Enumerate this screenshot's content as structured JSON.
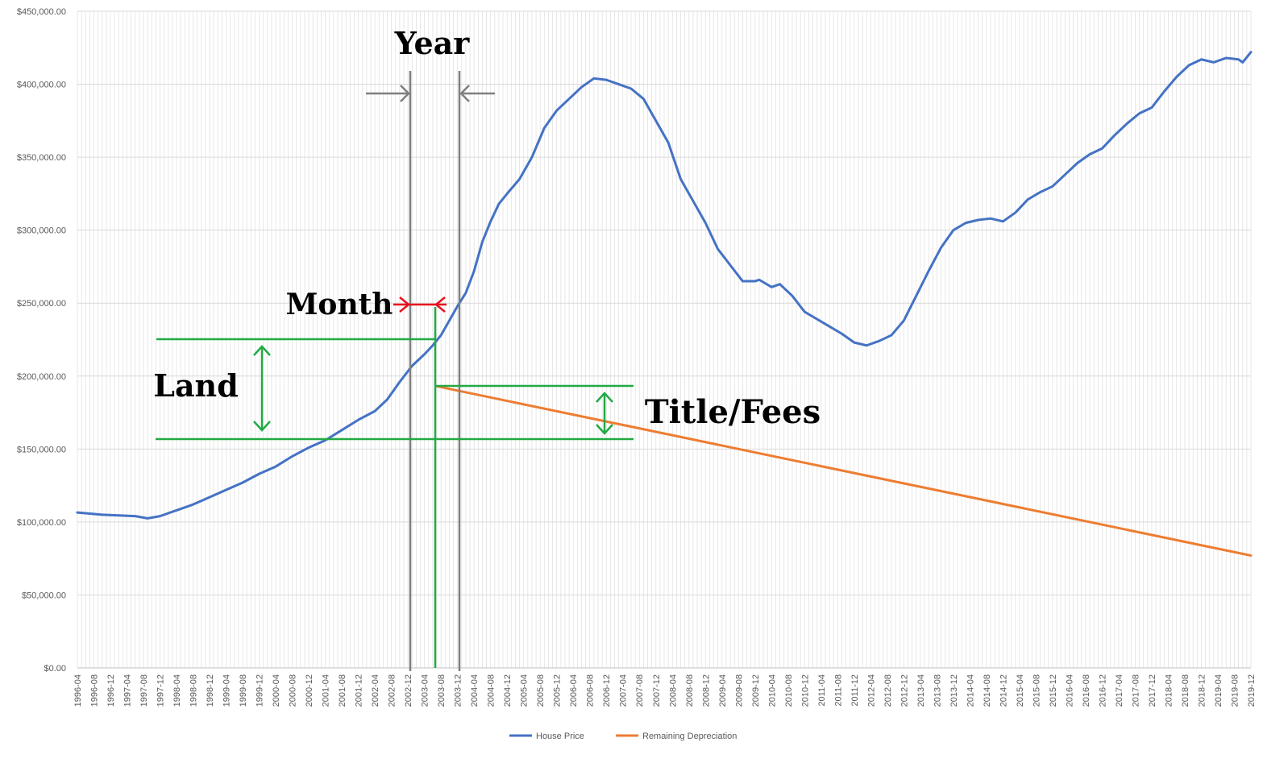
{
  "chart_data": {
    "type": "line",
    "title": "",
    "xlabel": "",
    "ylabel": "",
    "ylim": [
      0,
      450000
    ],
    "y_ticks": [
      0,
      50000,
      100000,
      150000,
      200000,
      250000,
      300000,
      350000,
      400000,
      450000
    ],
    "y_tick_labels": [
      "$0.00",
      "$50,000.00",
      "$100,000.00",
      "$150,000.00",
      "$200,000.00",
      "$250,000.00",
      "$300,000.00",
      "$350,000.00",
      "$400,000.00",
      "$450,000.00"
    ],
    "x_start": "1996-04",
    "x_end": "2019-12",
    "x_tick_labels": [
      "1996-04",
      "1996-08",
      "1996-12",
      "1997-04",
      "1997-08",
      "1997-12",
      "1998-04",
      "1998-08",
      "1998-12",
      "1999-04",
      "1999-08",
      "1999-12",
      "2000-04",
      "2000-08",
      "2000-12",
      "2001-04",
      "2001-08",
      "2001-12",
      "2002-04",
      "2002-08",
      "2002-12",
      "2003-04",
      "2003-08",
      "2003-12",
      "2004-04",
      "2004-08",
      "2004-12",
      "2005-04",
      "2005-08",
      "2005-12",
      "2006-04",
      "2006-08",
      "2006-12",
      "2007-04",
      "2007-08",
      "2007-12",
      "2008-04",
      "2008-08",
      "2008-12",
      "2009-04",
      "2009-08",
      "2009-12",
      "2010-04",
      "2010-08",
      "2010-12",
      "2011-04",
      "2011-08",
      "2011-12",
      "2012-04",
      "2012-08",
      "2012-12",
      "2013-04",
      "2013-08",
      "2013-12",
      "2014-04",
      "2014-08",
      "2014-12",
      "2015-04",
      "2015-08",
      "2015-12",
      "2016-04",
      "2016-08",
      "2016-12",
      "2017-04",
      "2017-08",
      "2017-12",
      "2018-04",
      "2018-08",
      "2018-12",
      "2019-04",
      "2019-08",
      "2019-12"
    ],
    "grid": true,
    "legend_position": "bottom",
    "series": [
      {
        "name": "House Price",
        "color": "#4472C4",
        "points": [
          [
            "1996-04",
            106500
          ],
          [
            "1996-10",
            105000
          ],
          [
            "1997-02",
            104500
          ],
          [
            "1997-06",
            104000
          ],
          [
            "1997-09",
            102500
          ],
          [
            "1997-12",
            104000
          ],
          [
            "1998-04",
            108000
          ],
          [
            "1998-08",
            112000
          ],
          [
            "1998-12",
            117000
          ],
          [
            "1999-04",
            122000
          ],
          [
            "1999-08",
            127000
          ],
          [
            "1999-12",
            133000
          ],
          [
            "2000-04",
            138000
          ],
          [
            "2000-08",
            145000
          ],
          [
            "2000-12",
            151000
          ],
          [
            "2001-04",
            156000
          ],
          [
            "2001-08",
            163000
          ],
          [
            "2001-12",
            170000
          ],
          [
            "2002-04",
            176000
          ],
          [
            "2002-07",
            184000
          ],
          [
            "2002-10",
            196000
          ],
          [
            "2003-01",
            207000
          ],
          [
            "2003-04",
            215000
          ],
          [
            "2003-06",
            221000
          ],
          [
            "2003-08",
            228000
          ],
          [
            "2003-10",
            238000
          ],
          [
            "2003-12",
            248000
          ],
          [
            "2004-02",
            257000
          ],
          [
            "2004-04",
            272000
          ],
          [
            "2004-06",
            292000
          ],
          [
            "2004-08",
            306000
          ],
          [
            "2004-10",
            318000
          ],
          [
            "2004-12",
            325000
          ],
          [
            "2005-03",
            335000
          ],
          [
            "2005-06",
            350000
          ],
          [
            "2005-09",
            370000
          ],
          [
            "2005-12",
            382000
          ],
          [
            "2006-03",
            390000
          ],
          [
            "2006-06",
            398000
          ],
          [
            "2006-09",
            404000
          ],
          [
            "2006-12",
            403000
          ],
          [
            "2007-03",
            400000
          ],
          [
            "2007-06",
            397000
          ],
          [
            "2007-09",
            390000
          ],
          [
            "2007-12",
            375000
          ],
          [
            "2008-03",
            360000
          ],
          [
            "2008-06",
            335000
          ],
          [
            "2008-09",
            320000
          ],
          [
            "2008-12",
            305000
          ],
          [
            "2009-03",
            287000
          ],
          [
            "2009-06",
            276000
          ],
          [
            "2009-09",
            265000
          ],
          [
            "2009-12",
            265000
          ],
          [
            "2010-01",
            266000
          ],
          [
            "2010-04",
            261000
          ],
          [
            "2010-06",
            263000
          ],
          [
            "2010-09",
            255000
          ],
          [
            "2010-12",
            244000
          ],
          [
            "2011-03",
            239000
          ],
          [
            "2011-06",
            234000
          ],
          [
            "2011-09",
            229000
          ],
          [
            "2011-12",
            223000
          ],
          [
            "2012-03",
            221000
          ],
          [
            "2012-06",
            224000
          ],
          [
            "2012-09",
            228000
          ],
          [
            "2012-12",
            238000
          ],
          [
            "2013-03",
            255000
          ],
          [
            "2013-06",
            272000
          ],
          [
            "2013-09",
            288000
          ],
          [
            "2013-12",
            300000
          ],
          [
            "2014-03",
            305000
          ],
          [
            "2014-06",
            307000
          ],
          [
            "2014-09",
            308000
          ],
          [
            "2014-12",
            306000
          ],
          [
            "2015-03",
            312000
          ],
          [
            "2015-06",
            321000
          ],
          [
            "2015-09",
            326000
          ],
          [
            "2015-12",
            330000
          ],
          [
            "2016-03",
            338000
          ],
          [
            "2016-06",
            346000
          ],
          [
            "2016-09",
            352000
          ],
          [
            "2016-12",
            356000
          ],
          [
            "2017-03",
            365000
          ],
          [
            "2017-06",
            373000
          ],
          [
            "2017-09",
            380000
          ],
          [
            "2017-12",
            384000
          ],
          [
            "2018-03",
            395000
          ],
          [
            "2018-06",
            405000
          ],
          [
            "2018-09",
            413000
          ],
          [
            "2018-12",
            417000
          ],
          [
            "2019-03",
            415000
          ],
          [
            "2019-06",
            418000
          ],
          [
            "2019-09",
            417000
          ],
          [
            "2019-10",
            415000
          ],
          [
            "2019-12",
            422000
          ]
        ]
      },
      {
        "name": "Remaining Depreciation",
        "color": "#ED7D31",
        "points": [
          [
            "2003-07",
            193000
          ],
          [
            "2019-12",
            77000
          ]
        ]
      }
    ]
  },
  "annotations": {
    "year_label": "Year",
    "month_label": "Month",
    "land_label": "Land",
    "title_fees_label": "Title/Fees"
  },
  "legend": {
    "series_0": "House Price",
    "series_1": "Remaining Depreciation"
  }
}
